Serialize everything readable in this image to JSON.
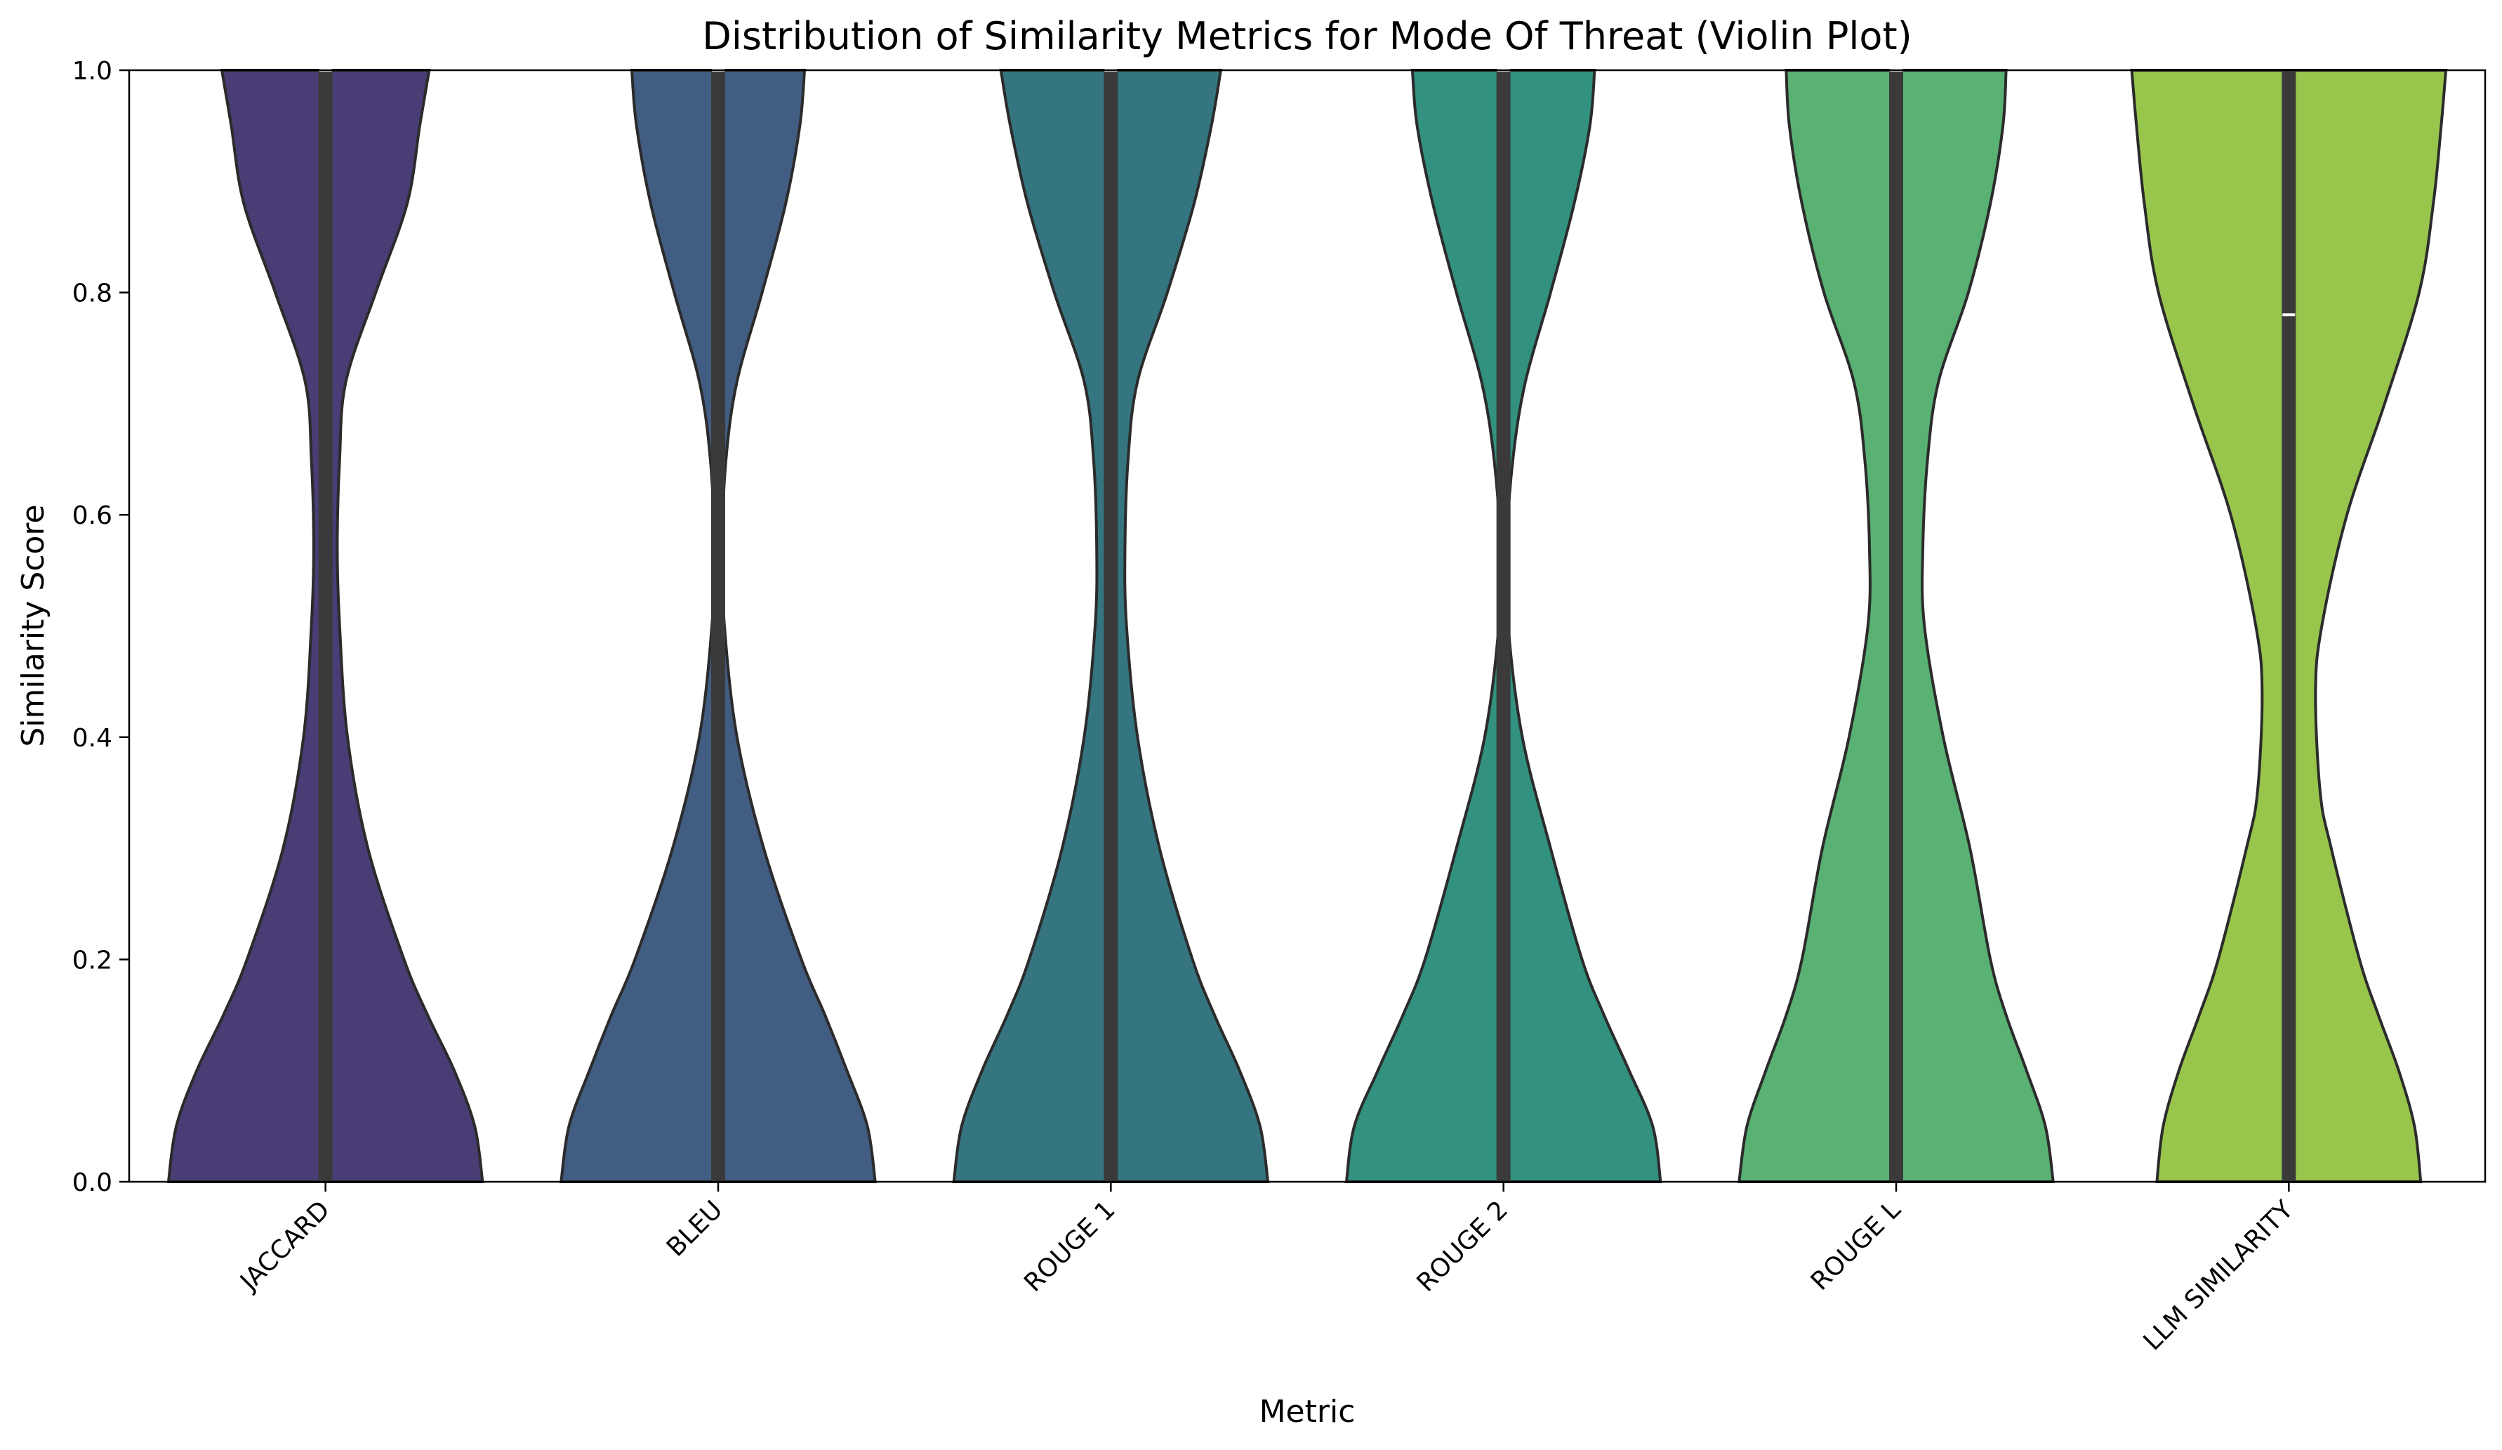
{
  "chart_data": {
    "type": "violin",
    "title": "Distribution of Similarity Metrics for Mode Of Threat (Violin Plot)",
    "xlabel": "Metric",
    "ylabel": "Similarity Score",
    "ylim": [
      0,
      1
    ],
    "yticks": [
      "0.0",
      "0.2",
      "0.4",
      "0.6",
      "0.8",
      "1.0"
    ],
    "grid": false,
    "legend": "none",
    "categories": [
      "JACCARD",
      "BLEU",
      "ROUGE 1",
      "ROUGE 2",
      "ROUGE L",
      "LLM SIMILARITY"
    ],
    "series": [
      {
        "color": "#4a3c74",
        "q1": 0.0,
        "median": 1.0,
        "q3": 1.0,
        "density": [
          [
            0.0,
            1.0
          ],
          [
            0.05,
            0.95
          ],
          [
            0.1,
            0.82
          ],
          [
            0.15,
            0.65
          ],
          [
            0.2,
            0.5
          ],
          [
            0.3,
            0.27
          ],
          [
            0.4,
            0.14
          ],
          [
            0.5,
            0.09
          ],
          [
            0.57,
            0.075
          ],
          [
            0.65,
            0.09
          ],
          [
            0.72,
            0.13
          ],
          [
            0.8,
            0.32
          ],
          [
            0.88,
            0.52
          ],
          [
            0.95,
            0.6
          ],
          [
            1.0,
            0.66
          ]
        ]
      },
      {
        "color": "#425d82",
        "q1": 0.0,
        "median": 1.0,
        "q3": 1.0,
        "density": [
          [
            0.0,
            1.0
          ],
          [
            0.05,
            0.95
          ],
          [
            0.1,
            0.82
          ],
          [
            0.15,
            0.68
          ],
          [
            0.2,
            0.53
          ],
          [
            0.3,
            0.29
          ],
          [
            0.4,
            0.12
          ],
          [
            0.5,
            0.04
          ],
          [
            0.57,
            0.025
          ],
          [
            0.65,
            0.05
          ],
          [
            0.72,
            0.12
          ],
          [
            0.8,
            0.28
          ],
          [
            0.88,
            0.43
          ],
          [
            0.95,
            0.52
          ],
          [
            1.0,
            0.55
          ]
        ]
      },
      {
        "color": "#357580",
        "q1": 0.0,
        "median": 1.0,
        "q3": 1.0,
        "density": [
          [
            0.0,
            1.0
          ],
          [
            0.05,
            0.95
          ],
          [
            0.1,
            0.82
          ],
          [
            0.15,
            0.66
          ],
          [
            0.2,
            0.52
          ],
          [
            0.3,
            0.31
          ],
          [
            0.4,
            0.17
          ],
          [
            0.5,
            0.1
          ],
          [
            0.57,
            0.09
          ],
          [
            0.65,
            0.11
          ],
          [
            0.72,
            0.17
          ],
          [
            0.8,
            0.36
          ],
          [
            0.88,
            0.53
          ],
          [
            0.95,
            0.64
          ],
          [
            1.0,
            0.7
          ]
        ]
      },
      {
        "color": "#32917f",
        "q1": 0.0,
        "median": 1.0,
        "q3": 1.0,
        "density": [
          [
            0.0,
            1.0
          ],
          [
            0.05,
            0.95
          ],
          [
            0.1,
            0.8
          ],
          [
            0.15,
            0.64
          ],
          [
            0.2,
            0.5
          ],
          [
            0.3,
            0.3
          ],
          [
            0.4,
            0.12
          ],
          [
            0.5,
            0.03
          ],
          [
            0.57,
            0.02
          ],
          [
            0.65,
            0.06
          ],
          [
            0.72,
            0.14
          ],
          [
            0.8,
            0.3
          ],
          [
            0.88,
            0.45
          ],
          [
            0.95,
            0.55
          ],
          [
            1.0,
            0.58
          ]
        ]
      },
      {
        "color": "#59b173",
        "q1": 0.0,
        "median": 1.0,
        "q3": 1.0,
        "density": [
          [
            0.0,
            1.0
          ],
          [
            0.05,
            0.95
          ],
          [
            0.1,
            0.83
          ],
          [
            0.15,
            0.7
          ],
          [
            0.2,
            0.6
          ],
          [
            0.3,
            0.47
          ],
          [
            0.4,
            0.3
          ],
          [
            0.5,
            0.18
          ],
          [
            0.57,
            0.17
          ],
          [
            0.65,
            0.2
          ],
          [
            0.72,
            0.27
          ],
          [
            0.8,
            0.46
          ],
          [
            0.88,
            0.6
          ],
          [
            0.95,
            0.68
          ],
          [
            1.0,
            0.7
          ]
        ]
      },
      {
        "color": "#98c54c",
        "q1": 0.0,
        "median": 0.78,
        "q3": 1.0,
        "density": [
          [
            0.0,
            0.84
          ],
          [
            0.05,
            0.8
          ],
          [
            0.1,
            0.7
          ],
          [
            0.15,
            0.57
          ],
          [
            0.2,
            0.45
          ],
          [
            0.3,
            0.27
          ],
          [
            0.35,
            0.2
          ],
          [
            0.44,
            0.17
          ],
          [
            0.5,
            0.21
          ],
          [
            0.6,
            0.37
          ],
          [
            0.7,
            0.61
          ],
          [
            0.8,
            0.83
          ],
          [
            0.88,
            0.92
          ],
          [
            0.95,
            0.97
          ],
          [
            1.0,
            1.0
          ]
        ]
      }
    ]
  }
}
